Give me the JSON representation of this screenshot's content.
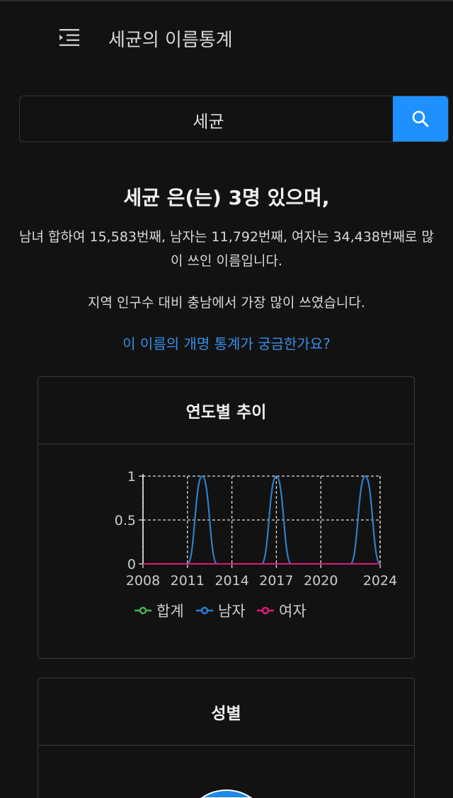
{
  "header": {
    "title": "세균의 이름통계",
    "menu_icon": "menu-indent-icon"
  },
  "search": {
    "value": "세균",
    "button_icon": "search-icon",
    "button_color": "#1e90ff"
  },
  "summary": {
    "headline": "세균 은(는) 3명 있으며,",
    "rank_text": "남녀 합하여 15,583번째, 남자는 11,792번째, 여자는 34,438번째로 많이 쓰인 이름입니다.",
    "region_text": "지역 인구수 대비 충남에서 가장 많이 쓰였습니다.",
    "rename_link": "이 이름의 개명 통계가 궁금한가요?"
  },
  "cards": [
    {
      "title": "연도별 추이"
    },
    {
      "title": "성별"
    }
  ],
  "chart_data": {
    "type": "line",
    "x": [
      2008,
      2009,
      2010,
      2011,
      2012,
      2013,
      2014,
      2015,
      2016,
      2017,
      2018,
      2019,
      2020,
      2021,
      2022,
      2023,
      2024
    ],
    "x_ticks": [
      "2008",
      "2011",
      "2014",
      "2017",
      "2020",
      "2024"
    ],
    "y_ticks": [
      "0",
      "0.5",
      "1"
    ],
    "ylim": [
      0,
      1
    ],
    "grid": true,
    "legend": "bottom",
    "series": [
      {
        "name": "합계",
        "color": "#4caf50",
        "values": [
          0,
          0,
          0,
          0,
          1,
          0,
          0,
          0,
          0,
          1,
          0,
          0,
          0,
          0,
          0,
          1,
          0
        ]
      },
      {
        "name": "남자",
        "color": "#2a7fd4",
        "values": [
          0,
          0,
          0,
          0,
          1,
          0,
          0,
          0,
          0,
          1,
          0,
          0,
          0,
          0,
          0,
          1,
          0
        ]
      },
      {
        "name": "여자",
        "color": "#e0197d",
        "values": [
          0,
          0,
          0,
          0,
          0,
          0,
          0,
          0,
          0,
          0,
          0,
          0,
          0,
          0,
          0,
          0,
          0
        ]
      }
    ]
  }
}
